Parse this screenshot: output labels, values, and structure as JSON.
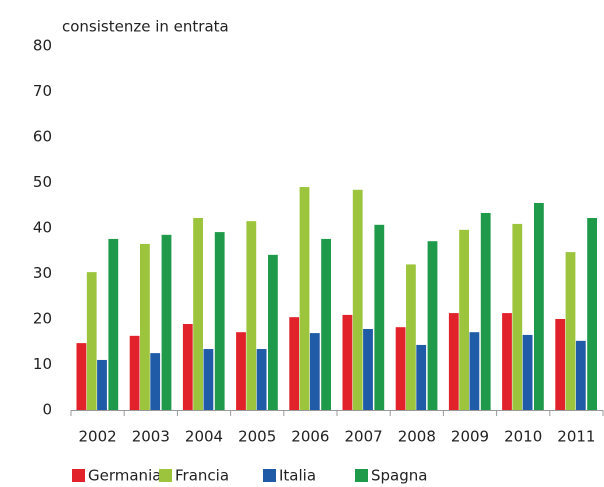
{
  "chart_data": {
    "type": "bar",
    "title": "consistenze in entrata",
    "categories": [
      "2002",
      "2003",
      "2004",
      "2005",
      "2006",
      "2007",
      "2008",
      "2009",
      "2010",
      "2011"
    ],
    "series": [
      {
        "name": "Germania",
        "color": "#e2222a",
        "values": [
          14.7,
          16.3,
          18.9,
          17.1,
          20.4,
          20.9,
          18.2,
          21.3,
          21.3,
          20.0
        ]
      },
      {
        "name": "Francia",
        "color": "#9cc53d",
        "values": [
          30.3,
          36.5,
          42.2,
          41.5,
          49.0,
          48.4,
          32.0,
          39.6,
          40.9,
          34.7
        ]
      },
      {
        "name": "Italia",
        "color": "#1f5ba6",
        "values": [
          11.0,
          12.5,
          13.4,
          13.4,
          16.9,
          17.8,
          14.3,
          17.1,
          16.5,
          15.2
        ]
      },
      {
        "name": "Spagna",
        "color": "#1f9a4a",
        "values": [
          37.6,
          38.5,
          39.1,
          34.1,
          37.6,
          40.7,
          37.1,
          43.3,
          45.5,
          42.2
        ]
      }
    ],
    "ylim": [
      0,
      80
    ],
    "yticks": [
      0,
      10,
      20,
      30,
      40,
      50,
      60,
      70,
      80
    ],
    "grid": false,
    "legend": "bottom"
  }
}
